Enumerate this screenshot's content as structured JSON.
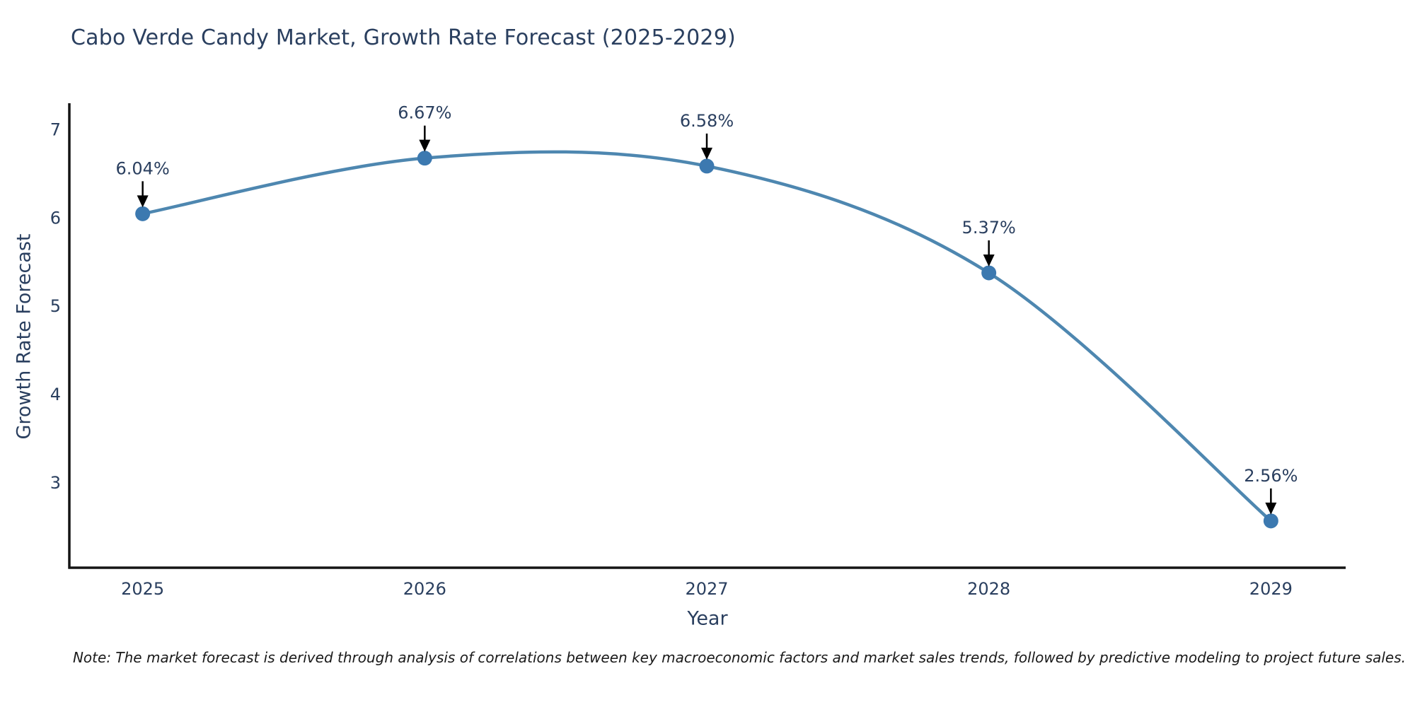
{
  "title": "Cabo Verde Candy Market, Growth Rate Forecast (2025-2029)",
  "note": "Note: The market forecast is derived through analysis of correlations between key macroeconomic factors and market sales trends, followed by predictive modeling to project future sales.",
  "chart_data": {
    "type": "line",
    "title": "Cabo Verde Candy Market, Growth Rate Forecast (2025-2029)",
    "xlabel": "Year",
    "ylabel": "Growth Rate Forecast",
    "x": [
      2025,
      2026,
      2027,
      2028,
      2029
    ],
    "y": [
      6.04,
      6.67,
      6.58,
      5.37,
      2.56
    ],
    "point_labels": [
      "6.04%",
      "6.67%",
      "6.58%",
      "5.37%",
      "2.56%"
    ],
    "xticks": [
      2025,
      2026,
      2027,
      2028,
      2029
    ],
    "yticks": [
      3,
      4,
      5,
      6,
      7
    ],
    "xlim": [
      2024.74,
      2029.26
    ],
    "ylim": [
      2.03,
      7.26
    ],
    "grid": false,
    "legend": "none",
    "line_shape": "spline",
    "colors": {
      "line": "#4e87b0",
      "marker": "#3c79b0",
      "arrow": "#000000",
      "text": "#2a3f5f",
      "axis": "#141414"
    }
  }
}
